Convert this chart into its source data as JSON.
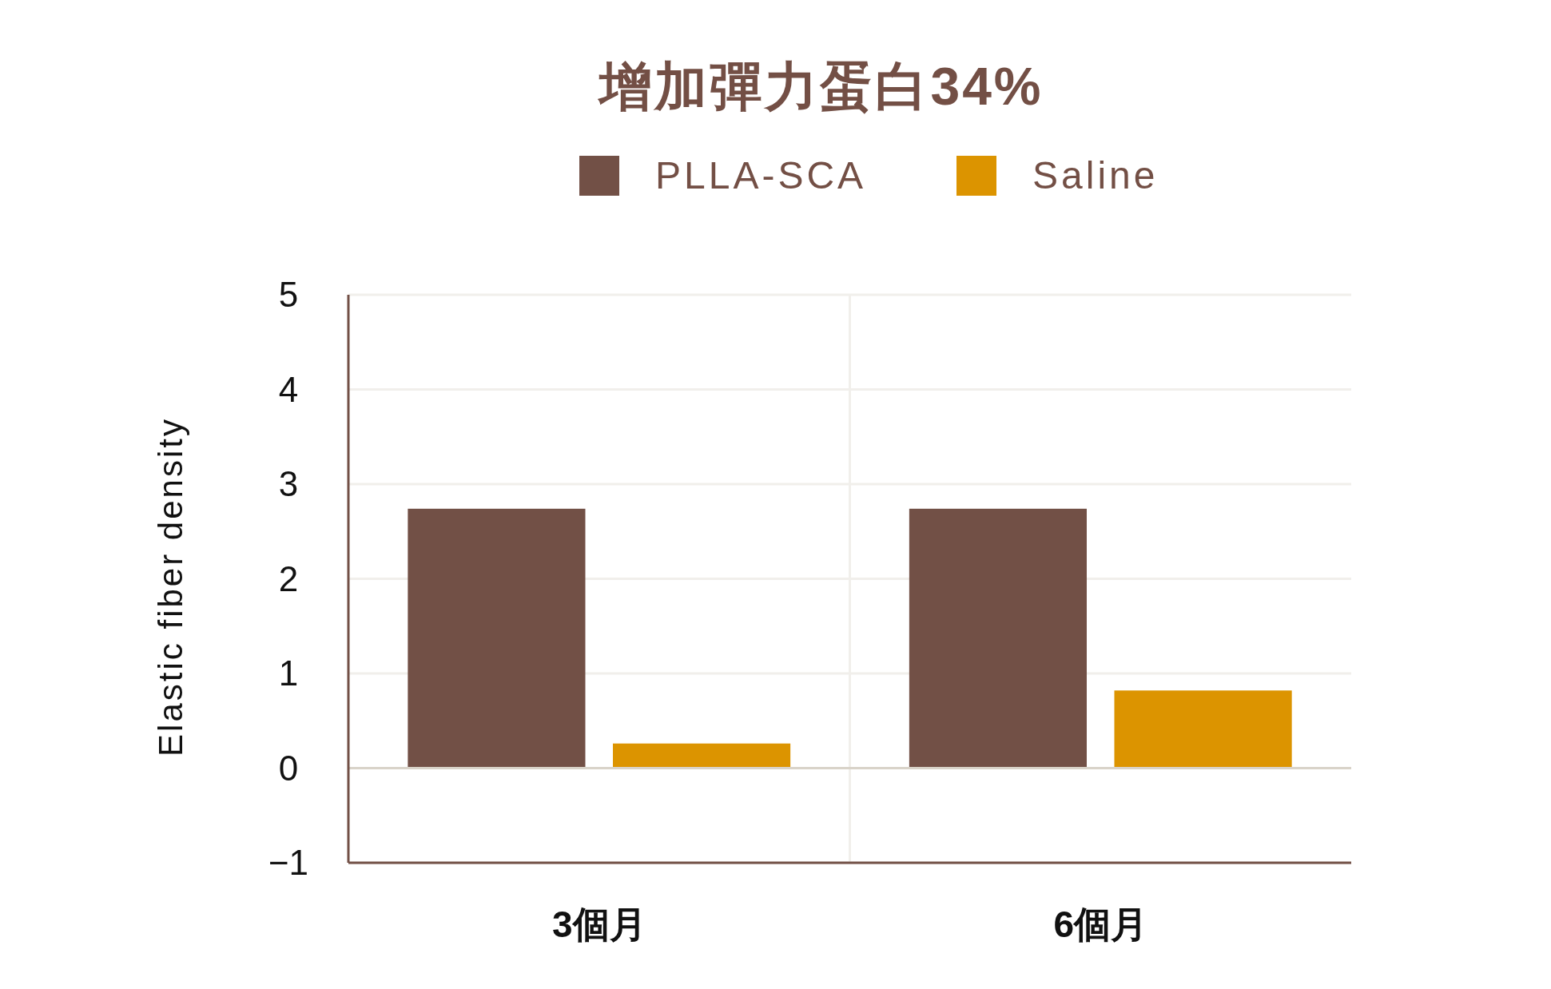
{
  "chart_data": {
    "type": "bar",
    "title": "增加彈力蛋白34%",
    "ylabel": "Elastic fiber density",
    "categories": [
      "3個月",
      "6個月"
    ],
    "series": [
      {
        "name": "PLLA-SCA",
        "color": "#725046",
        "values": [
          2.74,
          2.74
        ]
      },
      {
        "name": "Saline",
        "color": "#dc9400",
        "values": [
          0.26,
          0.82
        ]
      }
    ],
    "ylim": [
      -1,
      5
    ],
    "yticks": [
      -1,
      0,
      1,
      2,
      3,
      4,
      5
    ],
    "grid": true,
    "legend": "top"
  }
}
